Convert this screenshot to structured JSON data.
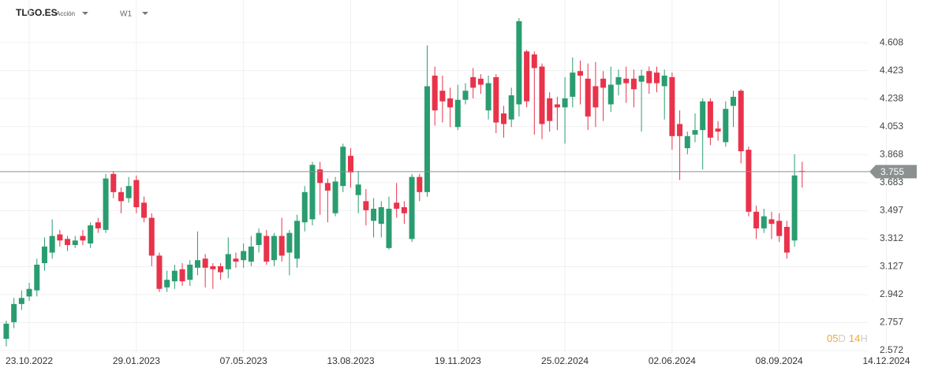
{
  "header": {
    "symbol": "TLGO.ES",
    "kind": "Acción",
    "timeframe": "W1"
  },
  "countdown": [
    "05",
    "D",
    "14",
    "H"
  ],
  "chart_data": {
    "type": "candlestick",
    "colors": {
      "up": "#2a9d70",
      "down": "#e8334b"
    },
    "xlim": [
      -0.82,
      116.7
    ],
    "ylim": [
      2.494,
      4.89
    ],
    "yticks": [
      2.572,
      2.757,
      2.942,
      3.127,
      3.312,
      3.497,
      3.683,
      3.868,
      4.053,
      4.238,
      4.423,
      4.608
    ],
    "xticks": [
      {
        "value": 3,
        "label": "23.10.2022"
      },
      {
        "value": 17,
        "label": "29.01.2023"
      },
      {
        "value": 31,
        "label": "07.05.2023"
      },
      {
        "value": 45,
        "label": "13.08.2023"
      },
      {
        "value": 59,
        "label": "19.11.2023"
      },
      {
        "value": 73,
        "label": "25.02.2024"
      },
      {
        "value": 87,
        "label": "02.06.2024"
      },
      {
        "value": 101,
        "label": "08.09.2024"
      },
      {
        "value": 115,
        "label": "14.12.2024"
      }
    ],
    "last_price": 3.755,
    "open": [
      2.65,
      2.76,
      2.88,
      2.93,
      2.97,
      3.15,
      3.22,
      3.34,
      3.31,
      3.27,
      3.33,
      3.28,
      3.42,
      3.37,
      3.74,
      3.62,
      3.58,
      3.7,
      3.55,
      3.45,
      3.2,
      2.99,
      3.03,
      3.11,
      3.04,
      3.12,
      3.18,
      3.13,
      3.13,
      3.11,
      3.18,
      3.17,
      3.16,
      3.27,
      3.33,
      3.17,
      3.33,
      3.22,
      3.18,
      3.42,
      3.44,
      3.77,
      3.68,
      3.48,
      3.66,
      3.86,
      3.6,
      3.56,
      3.43,
      3.41,
      3.25,
      3.55,
      3.52,
      3.31,
      3.72,
      3.62,
      4.39,
      4.29,
      4.24,
      4.05,
      4.23,
      4.38,
      4.37,
      4.16,
      4.38,
      4.14,
      4.1,
      4.2,
      4.55,
      4.53,
      4.45,
      4.24,
      4.2,
      4.18,
      4.25,
      4.42,
      4.37,
      4.32,
      4.37,
      4.2,
      4.33,
      4.37,
      4.37,
      4.35,
      4.42,
      4.41,
      4.32,
      4.38,
      4.07,
      3.91,
      4.0,
      4.03,
      4.22,
      4.04,
      3.95,
      4.19,
      4.29,
      3.9,
      3.49,
      3.38,
      3.44,
      3.43,
      3.39,
      3.3,
      3.76
    ],
    "high": [
      2.77,
      2.92,
      2.97,
      3.02,
      3.18,
      3.32,
      3.44,
      3.37,
      3.33,
      3.33,
      3.37,
      3.42,
      3.45,
      3.74,
      3.76,
      3.65,
      3.72,
      3.73,
      3.59,
      3.48,
      3.22,
      3.1,
      3.14,
      3.15,
      3.17,
      3.36,
      3.21,
      3.15,
      3.15,
      3.32,
      3.22,
      3.28,
      3.33,
      3.38,
      3.37,
      3.35,
      3.45,
      3.37,
      3.47,
      3.66,
      3.82,
      3.82,
      3.71,
      3.72,
      3.94,
      3.91,
      3.76,
      3.64,
      3.58,
      3.56,
      3.59,
      3.68,
      3.56,
      3.74,
      3.74,
      4.59,
      4.45,
      4.39,
      4.31,
      4.33,
      4.34,
      4.44,
      4.4,
      4.39,
      4.4,
      4.19,
      4.31,
      4.77,
      4.56,
      4.55,
      4.47,
      4.28,
      4.25,
      4.38,
      4.51,
      4.49,
      4.47,
      4.48,
      4.42,
      4.45,
      4.43,
      4.45,
      4.43,
      4.43,
      4.45,
      4.45,
      4.43,
      4.41,
      4.16,
      4.02,
      4.14,
      4.24,
      4.24,
      4.09,
      4.22,
      4.29,
      4.3,
      3.92,
      3.53,
      3.51,
      3.49,
      3.48,
      3.43,
      3.87,
      3.82
    ],
    "low": [
      2.6,
      2.72,
      2.84,
      2.9,
      2.93,
      3.1,
      3.18,
      3.26,
      3.23,
      3.25,
      3.27,
      3.25,
      3.35,
      3.35,
      3.58,
      3.48,
      3.55,
      3.48,
      3.42,
      3.13,
      2.96,
      2.96,
      2.98,
      3.0,
      3.0,
      3.07,
      2.99,
      2.98,
      3.04,
      3.05,
      3.12,
      3.12,
      3.13,
      3.22,
      3.14,
      3.13,
      3.16,
      3.07,
      3.12,
      3.36,
      3.4,
      3.47,
      3.42,
      3.46,
      3.62,
      3.65,
      3.48,
      3.4,
      3.32,
      3.32,
      3.24,
      3.45,
      3.41,
      3.29,
      3.56,
      3.59,
      4.06,
      4.08,
      4.05,
      4.03,
      4.2,
      4.24,
      4.27,
      4.1,
      4.01,
      3.98,
      4.05,
      4.12,
      4.18,
      4.0,
      3.97,
      4.02,
      4.03,
      3.94,
      4.18,
      4.2,
      4.03,
      4.05,
      4.09,
      4.15,
      4.26,
      4.21,
      4.18,
      4.02,
      4.27,
      4.28,
      4.1,
      3.9,
      3.7,
      3.87,
      3.95,
      3.77,
      3.93,
      3.96,
      3.92,
      4.05,
      3.81,
      3.46,
      3.31,
      3.35,
      3.31,
      3.29,
      3.18,
      3.26,
      3.65
    ],
    "close": [
      2.75,
      2.88,
      2.92,
      2.98,
      3.14,
      3.26,
      3.33,
      3.3,
      3.27,
      3.3,
      3.3,
      3.4,
      3.38,
      3.71,
      3.62,
      3.56,
      3.66,
      3.52,
      3.45,
      3.2,
      2.98,
      3.04,
      3.1,
      3.03,
      3.14,
      3.17,
      3.12,
      3.11,
      3.09,
      3.21,
      3.16,
      3.23,
      3.26,
      3.35,
      3.16,
      3.33,
      3.2,
      3.35,
      3.43,
      3.62,
      3.8,
      3.68,
      3.63,
      3.69,
      3.92,
      3.75,
      3.67,
      3.5,
      3.51,
      3.52,
      3.51,
      3.51,
      3.48,
      3.72,
      3.62,
      4.32,
      4.16,
      4.22,
      4.18,
      4.23,
      4.29,
      4.31,
      4.33,
      4.34,
      4.08,
      4.07,
      4.26,
      4.75,
      4.22,
      4.44,
      4.07,
      4.09,
      4.18,
      4.24,
      4.41,
      4.39,
      4.12,
      4.18,
      4.31,
      4.33,
      4.38,
      4.34,
      4.3,
      4.39,
      4.34,
      4.34,
      4.39,
      3.99,
      3.99,
      3.99,
      4.03,
      4.22,
      3.98,
      4.02,
      4.17,
      4.25,
      3.89,
      3.49,
      3.38,
      3.46,
      3.41,
      3.33,
      3.22,
      3.73,
      3.755
    ]
  }
}
